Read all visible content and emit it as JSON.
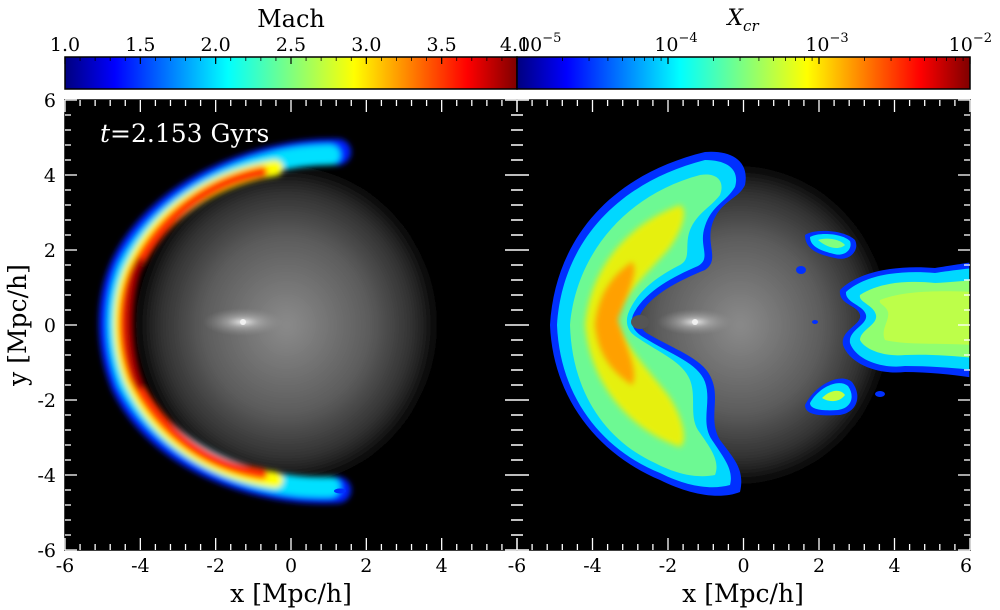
{
  "figure": {
    "left_colorbar": {
      "title": "Mach",
      "ticks": [
        "1.0",
        "1.5",
        "2.0",
        "2.5",
        "3.0",
        "3.5",
        "4.0"
      ],
      "range": [
        1.0,
        4.0
      ],
      "colormap": "jet"
    },
    "right_colorbar": {
      "title_base": "X",
      "title_sub": "cr",
      "scale": "log",
      "ticks": [
        {
          "base": "10",
          "exp": "−5"
        },
        {
          "base": "10",
          "exp": "−4"
        },
        {
          "base": "10",
          "exp": "−3"
        },
        {
          "base": "10",
          "exp": "−2"
        }
      ],
      "range": [
        1e-05,
        0.01
      ],
      "colormap": "jet"
    },
    "time_label": {
      "italic": "t",
      "text": "=2.153 Gyrs"
    },
    "xlabel": "x [Mpc/h]",
    "ylabel": "y [Mpc/h]",
    "left_xticks": [
      "-6",
      "-4",
      "-2",
      "0",
      "2",
      "4"
    ],
    "right_xticks": [
      "-6",
      "-4",
      "-2",
      "0",
      "2",
      "4",
      "6"
    ],
    "yticks": [
      "6",
      "4",
      "2",
      "0",
      "-2",
      "-4",
      "-6"
    ],
    "axis_range": [
      -6,
      6
    ],
    "background_map": "grayscale density",
    "colors": {
      "panel_bg": "#000000",
      "frame": "#000000",
      "ticks_inside": "#ffffff"
    }
  }
}
